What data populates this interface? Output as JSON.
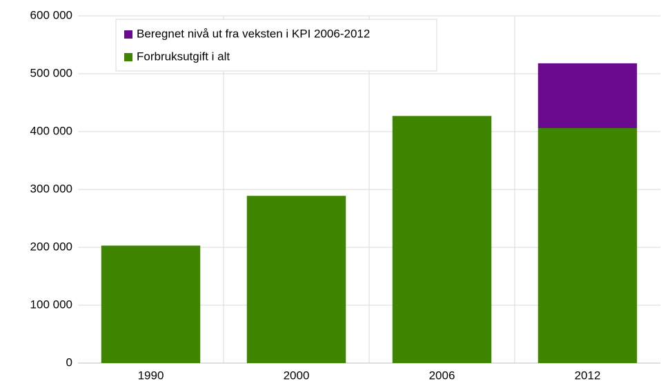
{
  "chart_data": {
    "type": "bar",
    "stacked": true,
    "categories": [
      "1990",
      "2000",
      "2006",
      "2012"
    ],
    "series": [
      {
        "name": "Forbruksutgift i alt",
        "color": "#3f8500",
        "values": [
          203000,
          289000,
          427000,
          406000
        ]
      },
      {
        "name": "Beregnet nivå ut fra veksten i KPI 2006-2012",
        "color": "#6a0a8c",
        "values": [
          null,
          null,
          null,
          112000
        ]
      }
    ],
    "ylim": [
      0,
      600000
    ],
    "yticks": [
      0,
      {
        "value": 100000,
        "label": "100 000"
      },
      {
        "value": 200000,
        "label": "200 000"
      },
      {
        "value": 300000,
        "label": "300 000"
      },
      {
        "value": 400000,
        "label": "400 000"
      },
      {
        "value": 500000,
        "label": "500 000"
      },
      {
        "value": 600000,
        "label": "600 000"
      }
    ],
    "grid": true,
    "legend": "top-left"
  }
}
